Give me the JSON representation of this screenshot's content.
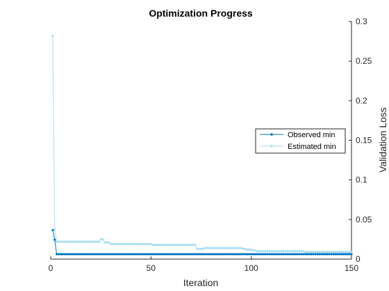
{
  "chart_data": {
    "type": "line",
    "title": "Optimization Progress",
    "xlabel": "Iteration",
    "ylabel": "Validation Loss",
    "xlim": [
      0,
      150
    ],
    "ylim": [
      0,
      0.3
    ],
    "x_ticks": [
      0,
      50,
      100,
      150
    ],
    "x_tick_labels": [
      "0",
      "50",
      "100",
      "150"
    ],
    "y_ticks": [
      0,
      0.05,
      0.1,
      0.15,
      0.2,
      0.25,
      0.3
    ],
    "y_tick_labels": [
      "0",
      "0.05",
      "0.1",
      "0.15",
      "0.2",
      "0.25",
      "0.3"
    ],
    "y_axis_side": "right",
    "grid": false,
    "legend_position": "right",
    "series": [
      {
        "name": "Observed min",
        "color": "#0072BD",
        "marker": "dot",
        "x_range": [
          1,
          150
        ],
        "values": [
          0.0367,
          0.0245,
          0.0062,
          0.0062,
          0.0062,
          0.0062,
          0.0062,
          0.0062,
          0.0062,
          0.0062,
          0.0062,
          0.0062,
          0.0062,
          0.0062,
          0.0062,
          0.0062,
          0.0062,
          0.0062,
          0.0062,
          0.0062,
          0.0062,
          0.0062,
          0.0062,
          0.0062,
          0.0062,
          0.0062,
          0.0062,
          0.0062,
          0.0062,
          0.0062,
          0.0062,
          0.0062,
          0.0062,
          0.0062,
          0.0062,
          0.0062,
          0.0062,
          0.0062,
          0.0062,
          0.0062,
          0.0062,
          0.0062,
          0.0062,
          0.0062,
          0.0062,
          0.0062,
          0.0062,
          0.0062,
          0.0062,
          0.0062,
          0.0062,
          0.0062,
          0.0062,
          0.0062,
          0.0062,
          0.0062,
          0.0062,
          0.0062,
          0.0062,
          0.0062,
          0.0062,
          0.0062,
          0.0062,
          0.0062,
          0.0062,
          0.0062,
          0.0062,
          0.0062,
          0.0062,
          0.0062,
          0.0062,
          0.0062,
          0.0062,
          0.0062,
          0.0062,
          0.0062,
          0.0062,
          0.0062,
          0.0062,
          0.0062,
          0.0062,
          0.0062,
          0.0062,
          0.0062,
          0.0062,
          0.0062,
          0.0062,
          0.0062,
          0.0062,
          0.0062,
          0.0062,
          0.0062,
          0.0062,
          0.0062,
          0.0062,
          0.0062,
          0.0062,
          0.0062,
          0.0062,
          0.0062,
          0.0062,
          0.0062,
          0.0062,
          0.0062,
          0.0062,
          0.0062,
          0.0062,
          0.0062,
          0.0062,
          0.0062,
          0.0062,
          0.0062,
          0.0062,
          0.0062,
          0.0062,
          0.0062,
          0.0062,
          0.0062,
          0.0062,
          0.0062,
          0.0062,
          0.0062,
          0.0062,
          0.0062,
          0.0062,
          0.0062,
          0.0062,
          0.0062,
          0.0062,
          0.0062,
          0.0062,
          0.0062,
          0.0062,
          0.0062,
          0.0062,
          0.0062,
          0.0062,
          0.0062,
          0.0062,
          0.0062,
          0.0062,
          0.0062,
          0.0062,
          0.0062,
          0.0062,
          0.0062,
          0.0062,
          0.0062,
          0.0062,
          0.0062
        ]
      },
      {
        "name": "Estimated min",
        "color": "#A6DDF5",
        "marker": "dot",
        "x_range": [
          1,
          150
        ],
        "values": [
          0.282,
          0.037,
          0.022,
          0.022,
          0.022,
          0.022,
          0.022,
          0.022,
          0.022,
          0.022,
          0.022,
          0.022,
          0.022,
          0.022,
          0.022,
          0.022,
          0.022,
          0.022,
          0.022,
          0.022,
          0.022,
          0.022,
          0.022,
          0.022,
          0.025,
          0.025,
          0.021,
          0.021,
          0.021,
          0.019,
          0.019,
          0.019,
          0.019,
          0.019,
          0.019,
          0.019,
          0.019,
          0.019,
          0.019,
          0.019,
          0.019,
          0.019,
          0.019,
          0.019,
          0.019,
          0.019,
          0.019,
          0.019,
          0.019,
          0.019,
          0.018,
          0.018,
          0.018,
          0.018,
          0.018,
          0.018,
          0.018,
          0.018,
          0.018,
          0.018,
          0.018,
          0.018,
          0.018,
          0.018,
          0.018,
          0.018,
          0.018,
          0.018,
          0.018,
          0.018,
          0.018,
          0.018,
          0.013,
          0.013,
          0.013,
          0.013,
          0.014,
          0.014,
          0.014,
          0.014,
          0.014,
          0.014,
          0.014,
          0.014,
          0.014,
          0.014,
          0.014,
          0.014,
          0.014,
          0.014,
          0.014,
          0.014,
          0.014,
          0.014,
          0.014,
          0.013,
          0.013,
          0.012,
          0.012,
          0.012,
          0.011,
          0.011,
          0.01,
          0.01,
          0.01,
          0.01,
          0.01,
          0.01,
          0.01,
          0.01,
          0.01,
          0.01,
          0.01,
          0.01,
          0.01,
          0.01,
          0.01,
          0.01,
          0.01,
          0.01,
          0.01,
          0.01,
          0.01,
          0.01,
          0.01,
          0.01,
          0.009,
          0.009,
          0.009,
          0.009,
          0.009,
          0.009,
          0.009,
          0.009,
          0.009,
          0.009,
          0.009,
          0.009,
          0.009,
          0.009,
          0.009,
          0.009,
          0.009,
          0.009,
          0.009,
          0.009,
          0.009,
          0.009,
          0.009,
          0.009
        ]
      }
    ]
  }
}
